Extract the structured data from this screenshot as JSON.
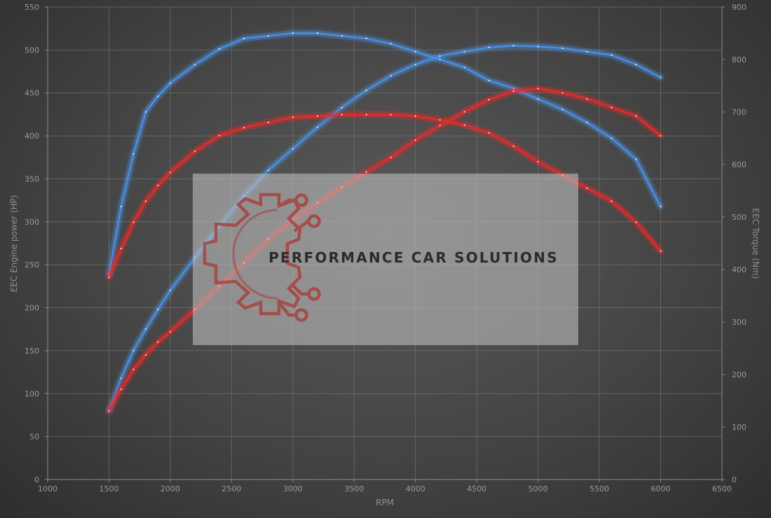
{
  "chart_data": {
    "type": "line",
    "xlabel": "RPM",
    "ylabel": "EEC Engine power (HP)",
    "y2label": "EEC Torque (Nm)",
    "xlim": [
      1000,
      6500
    ],
    "ylim": [
      0,
      550
    ],
    "y2lim": [
      0,
      900
    ],
    "x_ticks": [
      1000,
      1500,
      2000,
      2500,
      3000,
      3500,
      4000,
      4500,
      5000,
      5500,
      6000,
      6500
    ],
    "y_ticks": [
      0,
      50,
      100,
      150,
      200,
      250,
      300,
      350,
      400,
      450,
      500,
      550
    ],
    "y2_ticks": [
      0,
      100,
      200,
      300,
      400,
      500,
      600,
      700,
      800,
      900
    ],
    "grid": true,
    "series": [
      {
        "color": "#4a8fe0",
        "axis": "y2",
        "x": [
          1500,
          1600,
          1700,
          1800,
          1900,
          2000,
          2200,
          2400,
          2600,
          2800,
          3000,
          3200,
          3400,
          3600,
          3800,
          4000,
          4200,
          4400,
          4600,
          4800,
          5000,
          5200,
          5400,
          5600,
          5800,
          6000
        ],
        "values": [
          390,
          520,
          620,
          700,
          730,
          755,
          790,
          820,
          840,
          845,
          850,
          850,
          845,
          840,
          830,
          815,
          800,
          785,
          760,
          745,
          725,
          705,
          680,
          650,
          610,
          520
        ]
      },
      {
        "color": "#4a8fe0",
        "axis": "y",
        "x": [
          1500,
          1600,
          1700,
          1800,
          1900,
          2000,
          2200,
          2400,
          2600,
          2800,
          3000,
          3200,
          3400,
          3600,
          3800,
          4000,
          4200,
          4400,
          4600,
          4800,
          5000,
          5200,
          5400,
          5600,
          5800,
          6000
        ],
        "values": [
          80,
          118,
          150,
          175,
          198,
          220,
          258,
          295,
          330,
          360,
          385,
          410,
          433,
          453,
          470,
          483,
          493,
          498,
          503,
          505,
          504,
          502,
          498,
          494,
          483,
          468
        ]
      },
      {
        "color": "#e52a2a",
        "axis": "y2",
        "x": [
          1500,
          1600,
          1700,
          1800,
          1900,
          2000,
          2200,
          2400,
          2600,
          2800,
          3000,
          3200,
          3400,
          3600,
          3800,
          4000,
          4200,
          4400,
          4600,
          4800,
          5000,
          5200,
          5400,
          5600,
          5800,
          6000
        ],
        "values": [
          385,
          440,
          490,
          530,
          560,
          585,
          625,
          655,
          670,
          680,
          690,
          692,
          695,
          695,
          695,
          692,
          685,
          675,
          660,
          635,
          605,
          580,
          555,
          530,
          490,
          435
        ]
      },
      {
        "color": "#e52a2a",
        "axis": "y",
        "x": [
          1500,
          1600,
          1700,
          1800,
          1900,
          2000,
          2200,
          2400,
          2600,
          2800,
          3000,
          3200,
          3400,
          3600,
          3800,
          4000,
          4200,
          4400,
          4600,
          4800,
          5000,
          5200,
          5400,
          5600,
          5800,
          6000
        ],
        "values": [
          80,
          105,
          128,
          145,
          160,
          172,
          198,
          225,
          252,
          280,
          302,
          322,
          340,
          358,
          375,
          395,
          412,
          428,
          442,
          452,
          455,
          450,
          443,
          433,
          423,
          400
        ]
      }
    ]
  },
  "watermark": {
    "brand_name": "PERFORMANCE CAR SOLUTIONS",
    "icon": "gear-circuit-logo-icon",
    "logo_color": "#a8433f"
  }
}
